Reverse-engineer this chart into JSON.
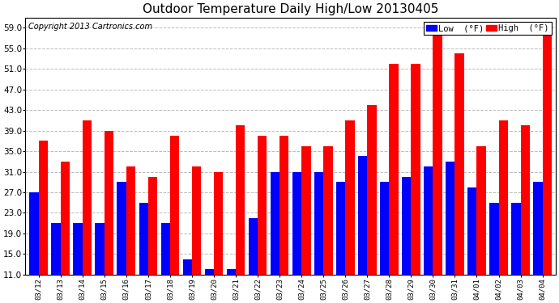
{
  "title": "Outdoor Temperature Daily High/Low 20130405",
  "copyright": "Copyright 2013 Cartronics.com",
  "legend_low": "Low  (°F)",
  "legend_high": "High  (°F)",
  "dates": [
    "03/12",
    "03/13",
    "03/14",
    "03/15",
    "03/16",
    "03/17",
    "03/18",
    "03/19",
    "03/20",
    "03/21",
    "03/22",
    "03/23",
    "03/24",
    "03/25",
    "03/26",
    "03/27",
    "03/28",
    "03/29",
    "03/30",
    "03/31",
    "04/01",
    "04/02",
    "04/03",
    "04/04"
  ],
  "low": [
    27,
    21,
    21,
    21,
    29,
    25,
    21,
    14,
    12,
    12,
    22,
    31,
    31,
    31,
    29,
    34,
    29,
    30,
    32,
    33,
    28,
    25,
    25,
    29
  ],
  "high": [
    37,
    33,
    41,
    39,
    32,
    30,
    38,
    32,
    31,
    40,
    38,
    38,
    36,
    36,
    41,
    44,
    52,
    52,
    59,
    54,
    36,
    41,
    40,
    59
  ],
  "ylim": [
    11.0,
    61.0
  ],
  "ymin": 11.0,
  "yticks": [
    11.0,
    15.0,
    19.0,
    23.0,
    27.0,
    31.0,
    35.0,
    39.0,
    43.0,
    47.0,
    51.0,
    55.0,
    59.0
  ],
  "low_color": "#0000ff",
  "high_color": "#ff0000",
  "bg_color": "#ffffff",
  "grid_color": "#bbbbbb",
  "title_fontsize": 11,
  "copyright_fontsize": 7,
  "bar_width": 0.42,
  "figwidth": 6.9,
  "figheight": 3.75,
  "dpi": 100
}
